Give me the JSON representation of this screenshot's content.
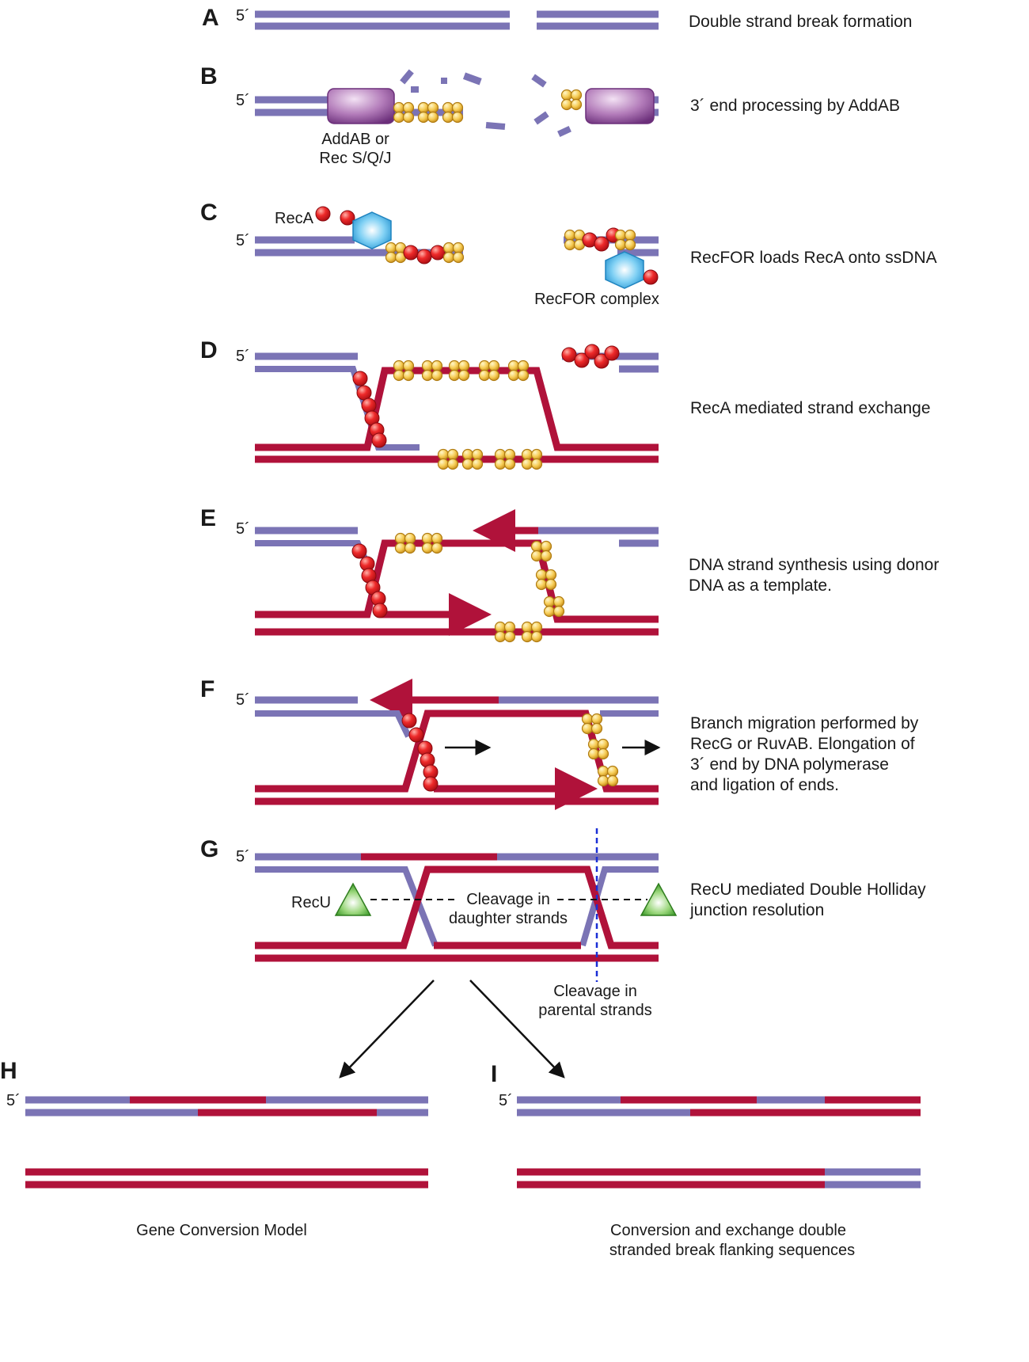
{
  "panels": {
    "A": {
      "label": "A",
      "five": "5´",
      "desc": [
        "Double strand break formation"
      ]
    },
    "B": {
      "label": "B",
      "five": "5´",
      "desc": [
        "3´ end processing by AddAB"
      ],
      "enzyme": [
        "AddAB or",
        "Rec S/Q/J"
      ]
    },
    "C": {
      "label": "C",
      "five": "5´",
      "desc": [
        "RecFOR loads RecA onto ssDNA"
      ],
      "reca": "RecA",
      "recfor": "RecFOR complex"
    },
    "D": {
      "label": "D",
      "five": "5´",
      "desc": [
        "RecA mediated strand exchange"
      ]
    },
    "E": {
      "label": "E",
      "five": "5´",
      "desc": [
        "DNA strand synthesis using donor",
        "DNA as a template."
      ]
    },
    "F": {
      "label": "F",
      "five": "5´",
      "desc": [
        "Branch migration performed by",
        "RecG or RuvAB. Elongation of",
        "3´ end by DNA polymerase",
        "and ligation of ends."
      ]
    },
    "G": {
      "label": "G",
      "five": "5´",
      "desc": [
        "RecU mediated Double Holliday",
        "junction resolution"
      ],
      "recu": "RecU",
      "cleave_daughter": [
        "Cleavage in",
        "daughter strands"
      ],
      "cleave_parental": [
        "Cleavage in",
        "parental strands"
      ]
    },
    "H": {
      "label": "H",
      "five": "5´",
      "caption": [
        "Gene Conversion Model"
      ]
    },
    "I": {
      "label": "I",
      "five": "5´",
      "caption": [
        "Conversion and exchange double",
        "stranded break flanking sequences"
      ]
    }
  },
  "colors": {
    "recipient_dna": "#7b74b5",
    "donor_dna": "#b0123a",
    "addab": "#b080b8",
    "reca": "#e8202a",
    "ssb": "#f3c24a",
    "recfor": "#3aa6dc",
    "recu": "#6cbb4a",
    "cleave_line": "#1a2fd6"
  }
}
